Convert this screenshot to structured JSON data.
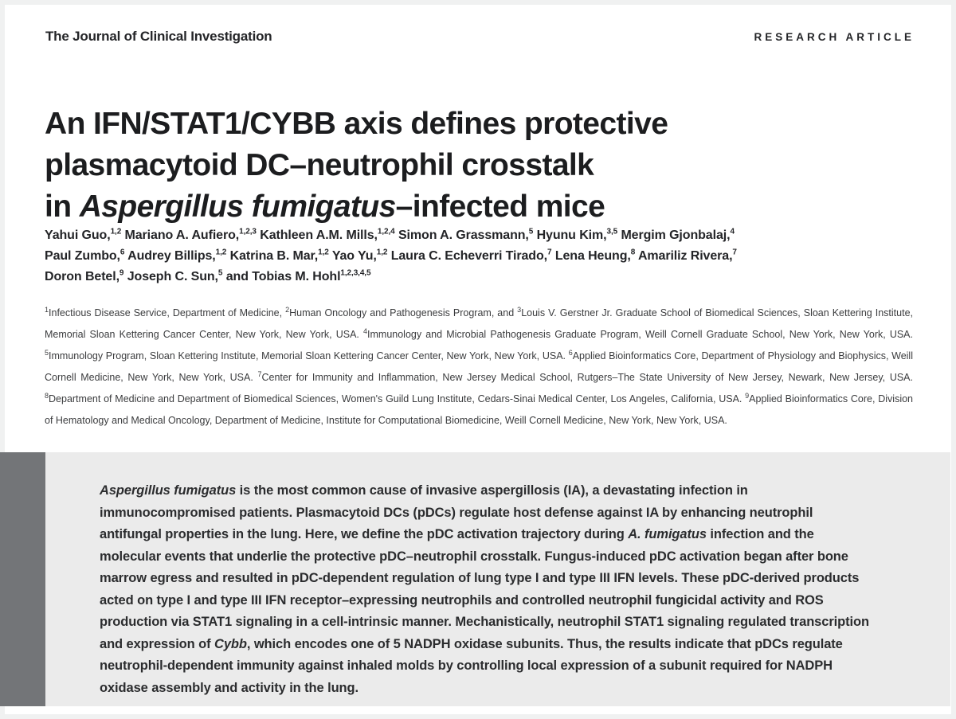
{
  "header": {
    "journal_name": "The Journal of Clinical Investigation",
    "article_type": "RESEARCH ARTICLE"
  },
  "title": {
    "plain": "An IFN/STAT1/CYBB axis defines protective plasmacytoid DC–neutrophil crosstalk in Aspergillus fumigatus–infected mice",
    "segments": [
      {
        "text": "An IFN/STAT1/CYBB axis defines protective"
      },
      {
        "br": true
      },
      {
        "text": "plasmacytoid DC–neutrophil crosstalk"
      },
      {
        "br": true
      },
      {
        "text": "in "
      },
      {
        "text": "Aspergillus fumigatus",
        "style": "i"
      },
      {
        "text": "–infected mice"
      }
    ]
  },
  "authors": {
    "segments": [
      {
        "text": "Yahui Guo,"
      },
      {
        "text": "1,2",
        "style": "sup"
      },
      {
        "text": " Mariano A. Aufiero,"
      },
      {
        "text": "1,2,3",
        "style": "sup"
      },
      {
        "text": " Kathleen A.M. Mills,"
      },
      {
        "text": "1,2,4",
        "style": "sup"
      },
      {
        "text": " Simon A. Grassmann,"
      },
      {
        "text": "5",
        "style": "sup"
      },
      {
        "text": " Hyunu Kim,"
      },
      {
        "text": "3,5",
        "style": "sup"
      },
      {
        "text": " Mergim Gjonbalaj,"
      },
      {
        "text": "4",
        "style": "sup"
      },
      {
        "br": true
      },
      {
        "text": "Paul Zumbo,"
      },
      {
        "text": "6",
        "style": "sup"
      },
      {
        "text": " Audrey Billips,"
      },
      {
        "text": "1,2",
        "style": "sup"
      },
      {
        "text": " Katrina B. Mar,"
      },
      {
        "text": "1,2",
        "style": "sup"
      },
      {
        "text": " Yao Yu,"
      },
      {
        "text": "1,2",
        "style": "sup"
      },
      {
        "text": " Laura C. Echeverri Tirado,"
      },
      {
        "text": "7",
        "style": "sup"
      },
      {
        "text": " Lena Heung,"
      },
      {
        "text": "8",
        "style": "sup"
      },
      {
        "text": " Amariliz Rivera,"
      },
      {
        "text": "7",
        "style": "sup"
      },
      {
        "br": true
      },
      {
        "text": "Doron Betel,"
      },
      {
        "text": "9",
        "style": "sup"
      },
      {
        "text": " Joseph C. Sun,"
      },
      {
        "text": "5",
        "style": "sup"
      },
      {
        "text": " and Tobias M. Hohl"
      },
      {
        "text": "1,2,3,4,5",
        "style": "sup"
      }
    ]
  },
  "affiliations": {
    "segments": [
      {
        "text": "1",
        "style": "sup"
      },
      {
        "text": "Infectious Disease Service, Department of Medicine, "
      },
      {
        "text": "2",
        "style": "sup"
      },
      {
        "text": "Human Oncology and Pathogenesis Program, and "
      },
      {
        "text": "3",
        "style": "sup"
      },
      {
        "text": "Louis V. Gerstner Jr. Graduate School of Biomedical Sciences, Sloan Kettering Institute, Memorial Sloan Kettering Cancer Center, New York, New York, USA. "
      },
      {
        "text": "4",
        "style": "sup"
      },
      {
        "text": "Immunology and Microbial Pathogenesis Graduate Program, Weill Cornell Graduate School, New York, New York, USA. "
      },
      {
        "text": "5",
        "style": "sup"
      },
      {
        "text": "Immunology Program, Sloan Kettering Institute, Memorial Sloan Kettering Cancer Center, New York, New York, USA. "
      },
      {
        "text": "6",
        "style": "sup"
      },
      {
        "text": "Applied Bioinformatics Core, Department of Physiology and Biophysics, Weill Cornell Medicine, New York, New York, USA. "
      },
      {
        "text": "7",
        "style": "sup"
      },
      {
        "text": "Center for Immunity and Inflammation, New Jersey Medical School, Rutgers–The State University of New Jersey, Newark, New Jersey, USA. "
      },
      {
        "text": "8",
        "style": "sup"
      },
      {
        "text": "Department of Medicine and Department of Biomedical Sciences, Women's Guild Lung Institute, Cedars-Sinai Medical Center, Los Angeles, California, USA. "
      },
      {
        "text": "9",
        "style": "sup"
      },
      {
        "text": "Applied Bioinformatics Core, Division of Hematology and Medical Oncology, Department of Medicine, Institute for Computational Biomedicine, Weill Cornell Medicine, New York, New York, USA."
      }
    ]
  },
  "abstract": {
    "segments": [
      {
        "text": "Aspergillus fumigatus",
        "style": "i"
      },
      {
        "text": " is the most common cause of invasive aspergillosis (IA), a devastating infection in immunocompromised patients. Plasmacytoid DCs (pDCs) regulate host defense against IA by enhancing neutrophil antifungal properties in the lung. Here, we define the pDC activation trajectory during "
      },
      {
        "text": "A. fumigatus",
        "style": "i"
      },
      {
        "text": " infection and the molecular events that underlie the protective pDC–neutrophil crosstalk. Fungus-induced pDC activation began after bone marrow egress and resulted in pDC-dependent regulation of lung type I and type III IFN levels. These pDC-derived products acted on type I and type III IFN receptor–expressing neutrophils and controlled neutrophil fungicidal activity and ROS production via STAT1 signaling in a cell-intrinsic manner. Mechanistically, neutrophil STAT1 signaling regulated transcription and expression of "
      },
      {
        "text": "Cybb",
        "style": "i"
      },
      {
        "text": ", which encodes one of 5 NADPH oxidase subunits. Thus, the results indicate that pDCs regulate neutrophil-dependent immunity against inhaled molds by controlling local expression of a subunit required for NADPH oxidase assembly and activity in the lung."
      }
    ]
  },
  "colors": {
    "title_text": "#1c1d1f",
    "body_text": "#3b3c3e",
    "abstract_panel_bg": "#ebebeb",
    "abstract_accent_bar": "#737578",
    "page_bg": "#ffffff"
  }
}
